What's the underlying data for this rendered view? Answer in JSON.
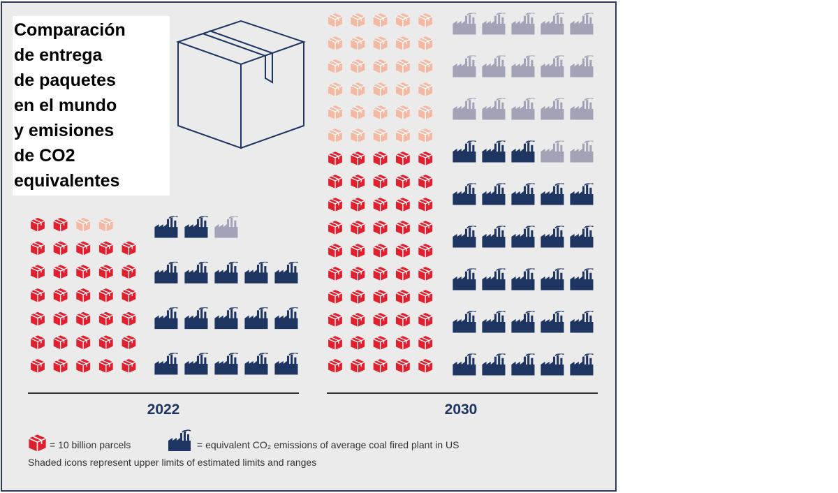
{
  "title": [
    "Comparación",
    "de entrega",
    "de paquetes",
    "en el mundo",
    "y emisiones",
    "de CO2",
    "equivalentes"
  ],
  "chart_data": {
    "type": "pictogram",
    "colors": {
      "parcel": "#e0202f",
      "parcel_shaded": "#f4b9a3",
      "plant": "#1e3461",
      "plant_shaded": "#a3a3b8"
    },
    "groups": [
      {
        "label": "2022",
        "parcels": 32,
        "parcels_shaded": 2,
        "plants": 17,
        "plants_shaded": 1
      },
      {
        "label": "2030",
        "parcels": 50,
        "parcels_shaded": 30,
        "plants": 28,
        "plants_shaded": 17
      }
    ]
  },
  "legend": {
    "parcel": "= 10 billion parcels",
    "plant": "= equivalent CO₂ emissions of average coal fired plant in US",
    "note": "Shaded icons represent upper limits of estimated limits and ranges"
  }
}
